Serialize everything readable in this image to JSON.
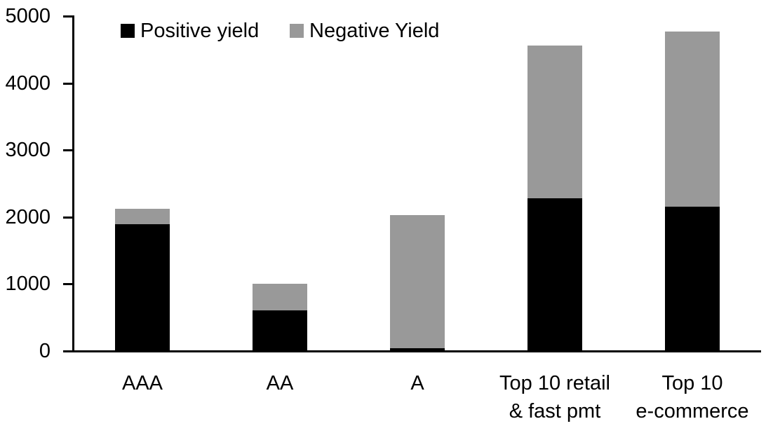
{
  "chart_data": {
    "type": "bar",
    "stacked": true,
    "title": "",
    "xlabel": "",
    "ylabel": "",
    "categories": [
      "AAA",
      "AA",
      "A",
      "Top 10 retail\n& fast pmt",
      "Top 10\ne-commerce"
    ],
    "series": [
      {
        "name": "Positive yield",
        "color": "#000000",
        "values": [
          1890,
          610,
          45,
          2280,
          2150
        ]
      },
      {
        "name": "Negative Yield",
        "color": "#999999",
        "values": [
          230,
          395,
          1985,
          2280,
          2620
        ]
      }
    ],
    "totals": [
      2120,
      1005,
      2030,
      4560,
      4770
    ],
    "ylim": [
      0,
      5000
    ],
    "yticks": [
      0,
      1000,
      2000,
      3000,
      4000,
      5000
    ],
    "ytick_labels": [
      "0",
      "1000",
      "2000",
      "3000",
      "4000",
      "5000"
    ],
    "legend_position": "top-left-inside",
    "grid": false,
    "axis_color": "#000000",
    "background_color": "#ffffff"
  }
}
